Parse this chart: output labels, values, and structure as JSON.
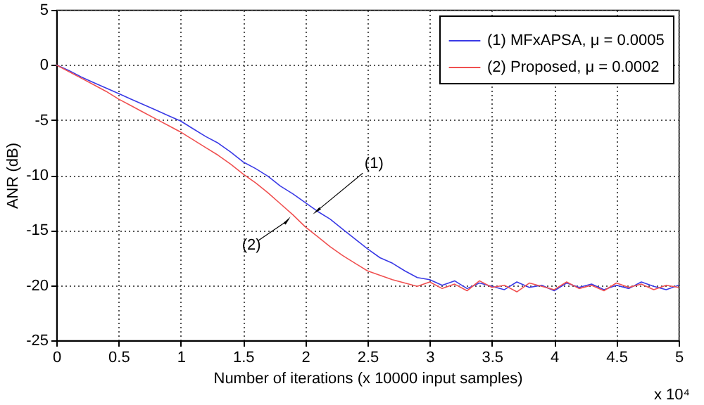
{
  "chart_data": {
    "type": "line",
    "xlabel": "Number of iterations (x 10000 input samples)",
    "ylabel": "ANR (dB)",
    "x": [
      0,
      0.1,
      0.2,
      0.3,
      0.4,
      0.5,
      0.6,
      0.7,
      0.8,
      0.9,
      1,
      1.1,
      1.2,
      1.3,
      1.4,
      1.5,
      1.6,
      1.7,
      1.8,
      1.9,
      2,
      2.1,
      2.2,
      2.3,
      2.4,
      2.5,
      2.6,
      2.7,
      2.8,
      2.9,
      3,
      3.1,
      3.2,
      3.3,
      3.4,
      3.5,
      3.6,
      3.7,
      3.8,
      3.9,
      4,
      4.1,
      4.2,
      4.3,
      4.4,
      4.5,
      4.6,
      4.7,
      4.8,
      4.9,
      5
    ],
    "series": [
      {
        "name": "(1) MFxAPSA, μ = 0.0005",
        "color": "#3a3ae6",
        "values": [
          0,
          -0.5,
          -1.1,
          -1.6,
          -2.1,
          -2.6,
          -3.1,
          -3.6,
          -4.1,
          -4.6,
          -5.1,
          -5.8,
          -6.5,
          -7.1,
          -7.9,
          -8.8,
          -9.4,
          -10.1,
          -11.0,
          -11.7,
          -12.5,
          -13.3,
          -14.0,
          -14.9,
          -15.8,
          -16.7,
          -17.5,
          -18.0,
          -18.7,
          -19.3,
          -19.5,
          -20.0,
          -19.6,
          -20.3,
          -19.8,
          -20.1,
          -20.4,
          -19.7,
          -20.2,
          -20.0,
          -20.5,
          -19.8,
          -20.2,
          -19.9,
          -20.4,
          -20.0,
          -20.3,
          -19.7,
          -20.1,
          -20.4,
          -20.0
        ]
      },
      {
        "name": "(2) Proposed, μ = 0.0002",
        "color": "#f05050",
        "values": [
          0,
          -0.6,
          -1.2,
          -1.8,
          -2.4,
          -3.1,
          -3.7,
          -4.3,
          -4.9,
          -5.5,
          -6.1,
          -6.8,
          -7.5,
          -8.2,
          -9.0,
          -9.9,
          -10.7,
          -11.6,
          -12.6,
          -13.6,
          -14.7,
          -15.6,
          -16.5,
          -17.3,
          -18.0,
          -18.7,
          -19.1,
          -19.5,
          -19.8,
          -20.1,
          -19.7,
          -20.3,
          -19.9,
          -20.5,
          -19.6,
          -20.2,
          -20.0,
          -20.6,
          -19.8,
          -20.1,
          -20.4,
          -19.7,
          -20.3,
          -20.0,
          -20.5,
          -19.8,
          -20.2,
          -19.9,
          -20.4,
          -20.0,
          -20.2
        ]
      }
    ],
    "xlim": [
      0,
      5
    ],
    "xticks": [
      0,
      0.5,
      1,
      1.5,
      2,
      2.5,
      3,
      3.5,
      4,
      4.5,
      5
    ],
    "ylim": [
      -25,
      5
    ],
    "yticks": [
      -25,
      -20,
      -15,
      -10,
      -5,
      0,
      5
    ],
    "annotations": [
      {
        "text": "(1)",
        "x": 2.1,
        "y": -13.2
      },
      {
        "text": "(2)",
        "x": 1.85,
        "y": -14.2
      },
      "x 10⁴"
    ],
    "grid": true,
    "legend": "top right",
    "line_style": "solid",
    "marker": "none"
  }
}
